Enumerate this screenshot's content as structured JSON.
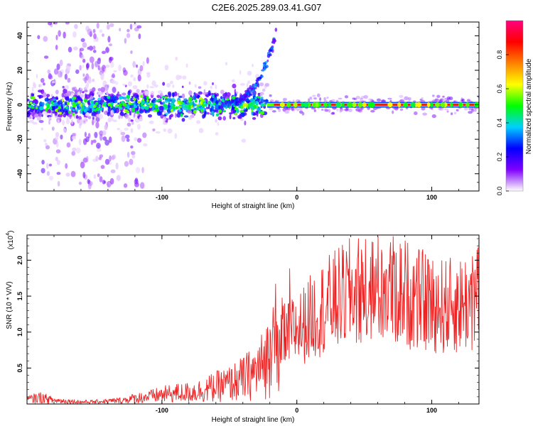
{
  "title": "C2E6.2025.289.03.41.G07",
  "colorbar": {
    "label": "Normalized spectral amplitude",
    "ticks": [
      "0.0",
      "0.2",
      "0.4",
      "0.6",
      "0.8"
    ],
    "tick_values": [
      0.0,
      0.2,
      0.4,
      0.6,
      0.8
    ],
    "range": [
      0,
      1
    ],
    "colors": [
      "#ffffff",
      "#8000ff",
      "#0000ff",
      "#00d0ff",
      "#00ff00",
      "#ffff00",
      "#ff8000",
      "#ff0000",
      "#ff0080"
    ]
  },
  "chart_data": [
    {
      "type": "heatmap",
      "title": "C2E6.2025.289.03.41.G07",
      "xlabel": "Height of straight line (km)",
      "ylabel": "Frequency (Hz)",
      "xlim": [
        -200,
        135
      ],
      "ylim": [
        -50,
        48
      ],
      "xticks": [
        -100,
        0,
        100
      ],
      "xtick_labels": [
        "-100",
        "0",
        "100"
      ],
      "yticks": [
        -40,
        -20,
        0,
        20,
        40
      ],
      "ytick_labels": [
        "-40",
        "-20",
        "0",
        "20",
        "40"
      ],
      "features": {
        "carrier_start_km": -22,
        "carrier_freq_hz": 0,
        "noise_band_hz": [
          -8,
          8
        ],
        "curve_start_km": -60,
        "curve_end_km": -15,
        "curve_peak_hz": 42,
        "vertical_streaks_km": [
          -180,
          -160,
          -150,
          -140,
          -120
        ]
      }
    },
    {
      "type": "line",
      "xlabel": "Height of straight line (km)",
      "ylabel": "SNR (10 * V/V)",
      "multiplier": "(x10^4)",
      "multiplier_base": "(x10",
      "multiplier_exp": "4",
      "multiplier_close": ")",
      "xlim": [
        -200,
        135
      ],
      "ylim": [
        0,
        2.35
      ],
      "xticks": [
        -100,
        0,
        100
      ],
      "xtick_labels": [
        "-100",
        "0",
        "100"
      ],
      "yticks": [
        0.5,
        1.0,
        1.5,
        2.0
      ],
      "ytick_labels": [
        "0.5",
        "1.0",
        "1.5",
        "2.0"
      ],
      "color": "#ee2222",
      "series": [
        {
          "name": "SNR",
          "x": [
            -200,
            -190,
            -180,
            -170,
            -160,
            -150,
            -140,
            -130,
            -120,
            -110,
            -100,
            -90,
            -80,
            -70,
            -60,
            -50,
            -40,
            -30,
            -25,
            -20,
            -15,
            -10,
            -5,
            0,
            5,
            10,
            20,
            30,
            40,
            50,
            60,
            70,
            80,
            90,
            100,
            110,
            120,
            130,
            135
          ],
          "y": [
            0.06,
            0.09,
            0.05,
            0.04,
            0.03,
            0.03,
            0.04,
            0.05,
            0.08,
            0.1,
            0.13,
            0.15,
            0.16,
            0.19,
            0.24,
            0.28,
            0.35,
            0.45,
            0.55,
            0.7,
            0.85,
            0.95,
            1.0,
            1.05,
            1.1,
            1.2,
            1.35,
            1.45,
            1.55,
            1.6,
            1.62,
            1.6,
            1.55,
            1.45,
            1.4,
            1.35,
            1.38,
            1.45,
            1.5
          ]
        }
      ]
    }
  ]
}
